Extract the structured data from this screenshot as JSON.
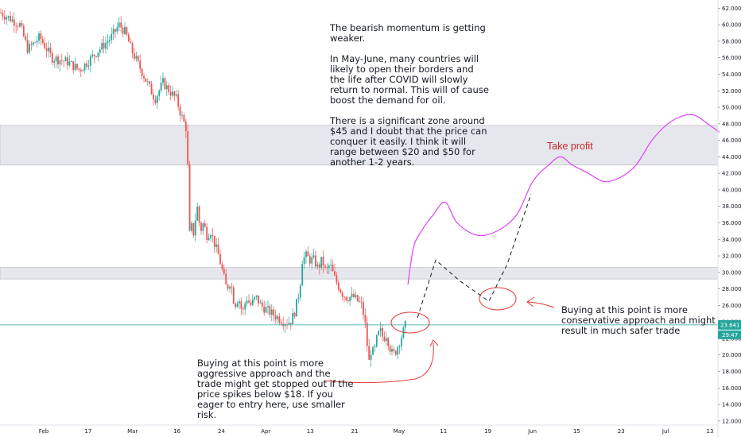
{
  "annotations": {
    "main_note": "The bearish momentum is getting weaker.\n\nIn May-June, many countries will likely to open their borders and the life after COVID will slowly return to normal. This will of cause boost the demand for oil.\n\nThere is a significant zone around $45 and I doubt that the price can conquer it easily. I think it will range between $20 and $50 for another 1-2 years.",
    "take_profit": "Take profit",
    "aggressive_note": "Buying at this point is more aggressive approach and the trade might get stopped out if the price spikes below $18. If you eager to entry here, use smaller risk.",
    "conservative_note": "Buying at this point is more conservative approach and might result in much safer trade"
  },
  "colors": {
    "bull": "#26a69a",
    "bear": "#ef5350",
    "projection": "#e040fb",
    "hand_drawn": "#e53935",
    "zone": "#d1d4dc",
    "price_line": "#26a69a"
  },
  "chart_data": {
    "type": "candlestick",
    "title": "",
    "y_ticks": [
      "62.000",
      "60.000",
      "58.000",
      "56.000",
      "54.000",
      "52.000",
      "50.000",
      "48.000",
      "46.000",
      "44.000",
      "42.000",
      "40.000",
      "38.000",
      "36.000",
      "34.000",
      "32.000",
      "30.000",
      "28.000",
      "26.000",
      "24.000",
      "22.000",
      "20.000",
      "18.000",
      "16.000",
      "14.000",
      "12.000"
    ],
    "ylim": [
      11.5,
      63.0
    ],
    "x_ticks": [
      "Feb",
      "17",
      "Mar",
      "16",
      "24",
      "Apr",
      "13",
      "21",
      "May",
      "11",
      "19",
      "Jun",
      "15",
      "23",
      "Jul",
      "13"
    ],
    "current_price": "23.641",
    "countdown": "29:47",
    "zones": [
      {
        "from": 43.0,
        "to": 47.8
      },
      {
        "from": 29.2,
        "to": 30.6
      }
    ],
    "price_path": [
      [
        0,
        61.5
      ],
      [
        25,
        60
      ],
      [
        35,
        57
      ],
      [
        50,
        58.5
      ],
      [
        65,
        56
      ],
      [
        85,
        55.5
      ],
      [
        100,
        54.5
      ],
      [
        110,
        55.5
      ],
      [
        125,
        57
      ],
      [
        140,
        58.5
      ],
      [
        150,
        60
      ],
      [
        158,
        59
      ],
      [
        165,
        57
      ],
      [
        175,
        55
      ],
      [
        185,
        53
      ],
      [
        195,
        51
      ],
      [
        205,
        53
      ],
      [
        213,
        52
      ],
      [
        222,
        51
      ],
      [
        228,
        49
      ],
      [
        234,
        47.5
      ],
      [
        236,
        44
      ],
      [
        237,
        38
      ],
      [
        238,
        34
      ],
      [
        240,
        36
      ],
      [
        243,
        34.5
      ],
      [
        248,
        38
      ],
      [
        252,
        35
      ],
      [
        256,
        36
      ],
      [
        260,
        34.5
      ],
      [
        265,
        35
      ],
      [
        268,
        34
      ],
      [
        275,
        32
      ],
      [
        280,
        30
      ],
      [
        285,
        28
      ],
      [
        290,
        29
      ],
      [
        295,
        26
      ],
      [
        300,
        27
      ],
      [
        305,
        25
      ],
      [
        310,
        27
      ],
      [
        315,
        26
      ],
      [
        322,
        27
      ],
      [
        328,
        26
      ],
      [
        335,
        25.5
      ],
      [
        342,
        25
      ],
      [
        350,
        24.5
      ],
      [
        358,
        24
      ],
      [
        365,
        24
      ],
      [
        370,
        25
      ],
      [
        375,
        27
      ],
      [
        378,
        29
      ],
      [
        380,
        31.5
      ],
      [
        385,
        32
      ],
      [
        390,
        31.5
      ],
      [
        395,
        31.5
      ],
      [
        400,
        30.5
      ],
      [
        405,
        31.5
      ],
      [
        410,
        30
      ],
      [
        415,
        31
      ],
      [
        420,
        29.5
      ],
      [
        425,
        28.5
      ],
      [
        430,
        27.5
      ],
      [
        435,
        27
      ],
      [
        440,
        27
      ],
      [
        445,
        27
      ],
      [
        450,
        26.5
      ],
      [
        455,
        26
      ],
      [
        459,
        24
      ],
      [
        462,
        21
      ],
      [
        465,
        18.5
      ],
      [
        467,
        21
      ],
      [
        470,
        20
      ],
      [
        474,
        22
      ],
      [
        478,
        23
      ],
      [
        482,
        22
      ],
      [
        486,
        22.5
      ],
      [
        490,
        21
      ],
      [
        494,
        20
      ],
      [
        498,
        20.5
      ],
      [
        502,
        21.5
      ],
      [
        506,
        22.5
      ],
      [
        510,
        23.6
      ]
    ],
    "projection_path": [
      [
        513,
        28.5
      ],
      [
        520,
        33
      ],
      [
        530,
        35
      ],
      [
        545,
        37
      ],
      [
        560,
        38.5
      ],
      [
        575,
        36
      ],
      [
        600,
        34.5
      ],
      [
        625,
        35
      ],
      [
        650,
        37
      ],
      [
        670,
        41
      ],
      [
        690,
        43
      ],
      [
        705,
        44
      ],
      [
        720,
        43
      ],
      [
        740,
        42
      ],
      [
        760,
        41
      ],
      [
        780,
        41.5
      ],
      [
        800,
        43
      ],
      [
        820,
        46
      ],
      [
        840,
        48
      ],
      [
        860,
        49
      ],
      [
        875,
        49
      ],
      [
        890,
        48
      ],
      [
        905,
        47
      ]
    ],
    "dashed_path": [
      [
        525,
        24.5
      ],
      [
        548,
        31.5
      ],
      [
        578,
        29
      ],
      [
        615,
        26.5
      ],
      [
        638,
        31
      ],
      [
        668,
        39.5
      ]
    ]
  }
}
